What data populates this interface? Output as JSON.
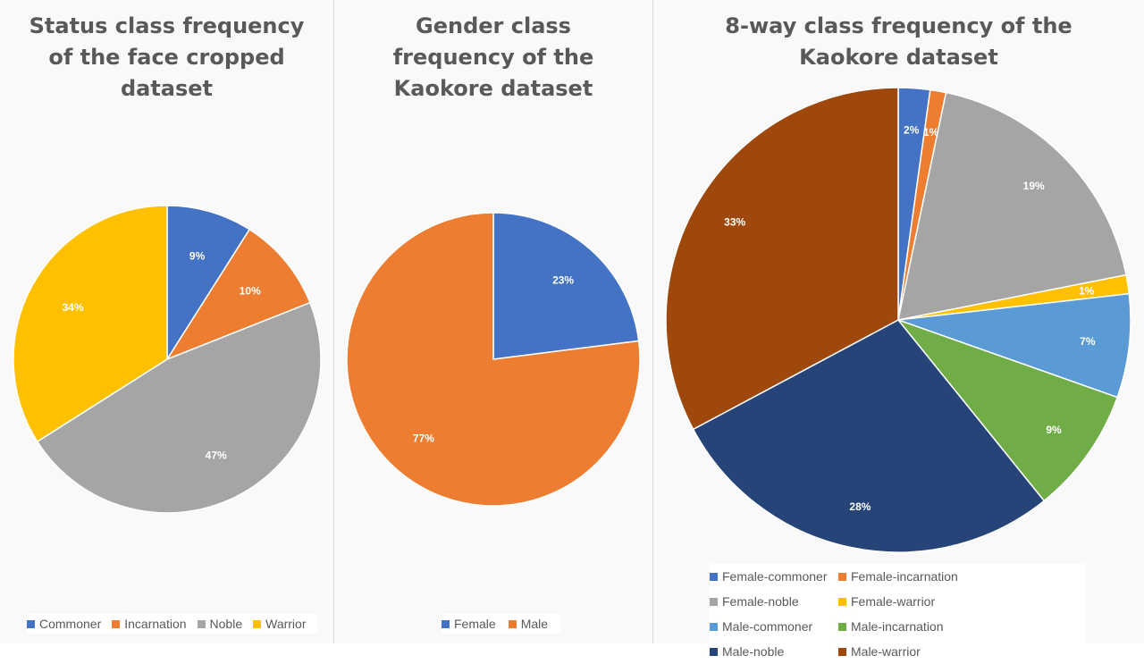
{
  "chart_data": [
    {
      "type": "pie",
      "title_lines": [
        "Status class frequency",
        "of the face cropped",
        "dataset"
      ],
      "categories": [
        "Commoner",
        "Incarnation",
        "Noble",
        "Warrior"
      ],
      "values": [
        9,
        10,
        47,
        34
      ],
      "labels": [
        "9%",
        "10%",
        "47%",
        "34%"
      ],
      "colors": [
        "#4472c4",
        "#ed7d31",
        "#a5a5a5",
        "#ffc000"
      ],
      "legend_position": "bottom"
    },
    {
      "type": "pie",
      "title_lines": [
        "Gender class",
        "frequency of the",
        "Kaokore dataset"
      ],
      "categories": [
        "Female",
        "Male"
      ],
      "values": [
        23,
        77
      ],
      "labels": [
        "23%",
        "77%"
      ],
      "colors": [
        "#4472c4",
        "#ed7d31"
      ],
      "legend_position": "bottom"
    },
    {
      "type": "pie",
      "title_lines": [
        "8-way class frequency of the",
        "Kaokore dataset"
      ],
      "categories": [
        "Female-commoner",
        "Female-incarnation",
        "Female-noble",
        "Female-warrior",
        "Male-commoner",
        "Male-incarnation",
        "Male-noble",
        "Male-warrior"
      ],
      "values": [
        2.2,
        1.1,
        18.6,
        1.3,
        7.2,
        8.8,
        28.0,
        32.8
      ],
      "labels": [
        "2%",
        "1%",
        "19%",
        "1%",
        "7%",
        "9%",
        "28%",
        "33%"
      ],
      "colors": [
        "#4472c4",
        "#ed7d31",
        "#a5a5a5",
        "#ffc000",
        "#5b9bd5",
        "#70ad47",
        "#264478",
        "#9e480e"
      ],
      "legend_position": "bottom"
    }
  ]
}
